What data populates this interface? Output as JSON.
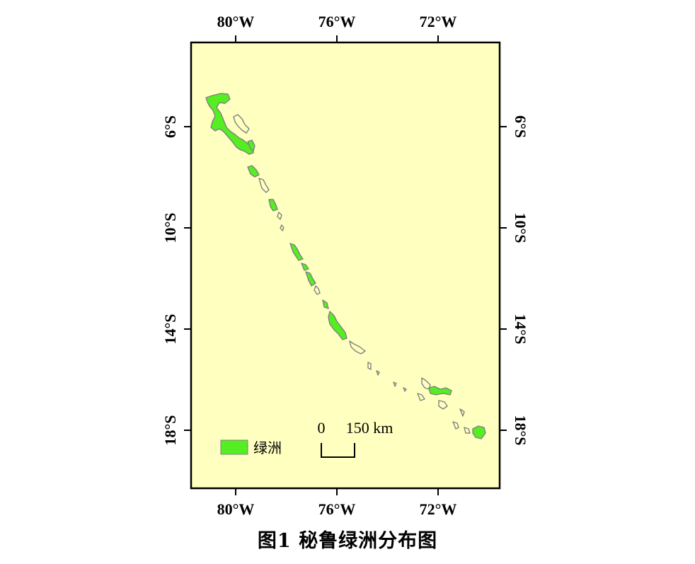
{
  "map": {
    "background_color": "#ffffc0",
    "frame_color": "#000000",
    "oasis_color": "#55ee22",
    "oasis_outline_color": "#808080",
    "longitude_ticks": [
      "80°W",
      "76°W",
      "72°W"
    ],
    "latitude_ticks": [
      "6°S",
      "10°S",
      "14°S",
      "18°S"
    ]
  },
  "legend": {
    "label": "绿洲",
    "swatch_color": "#55ee22"
  },
  "scale_bar": {
    "zero_label": "0",
    "distance_label": "150 km"
  },
  "caption": "图1  秘鲁绿洲分布图"
}
